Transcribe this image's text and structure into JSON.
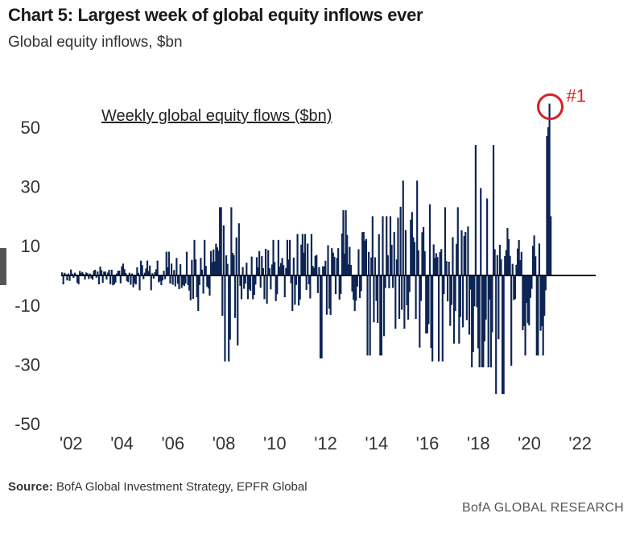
{
  "header": {
    "title": "Chart 5: Largest week of global equity inflows ever",
    "subtitle": "Global equity inflows, $bn"
  },
  "footer": {
    "source_label": "Source:",
    "source_text": "BofA Global Investment Strategy, EPFR Global",
    "brand": "BofA GLOBAL RESEARCH"
  },
  "colors": {
    "bars": "#0e2554",
    "zero_line": "#111111",
    "highlight": "#d62027",
    "axis_text": "#333333"
  },
  "chart_data": {
    "type": "bar",
    "title": "Weekly global equity flows ($bn)",
    "xlabel": "",
    "ylabel": "",
    "ylim": [
      -50,
      60
    ],
    "xlim": [
      2002,
      2023
    ],
    "yticks": [
      50,
      30,
      10,
      -10,
      -30,
      -50
    ],
    "xtick_labels": [
      "'02",
      "'04",
      "'06",
      "'08",
      "'10",
      "'12",
      "'14",
      "'16",
      "'18",
      "'20",
      "'22"
    ],
    "annotation": {
      "label": "#1",
      "x": 2021.15,
      "y": 58
    },
    "series": [
      {
        "values_by_year": [
          {
            "year": 2002,
            "max": 2,
            "min": -3
          },
          {
            "year": 2003,
            "max": 3,
            "min": -3
          },
          {
            "year": 2004,
            "max": 4,
            "min": -4
          },
          {
            "year": 2005,
            "max": 5,
            "min": -5
          },
          {
            "year": 2006,
            "max": 8,
            "min": -6
          },
          {
            "year": 2007,
            "max": 12,
            "min": -12
          },
          {
            "year": 2008,
            "max": 23,
            "min": -29
          },
          {
            "year": 2009,
            "max": 12,
            "min": -8
          },
          {
            "year": 2010,
            "max": 12,
            "min": -12
          },
          {
            "year": 2011,
            "max": 14,
            "min": -12
          },
          {
            "year": 2012,
            "max": 14,
            "min": -28
          },
          {
            "year": 2013,
            "max": 22,
            "min": -12
          },
          {
            "year": 2014,
            "max": 20,
            "min": -27
          },
          {
            "year": 2015,
            "max": 32,
            "min": -18
          },
          {
            "year": 2016,
            "max": 24,
            "min": -29
          },
          {
            "year": 2017,
            "max": 23,
            "min": -23
          },
          {
            "year": 2018,
            "max": 44,
            "min": -31
          },
          {
            "year": 2019,
            "max": 16,
            "min": -40
          },
          {
            "year": 2020,
            "max": 19,
            "min": -27
          },
          {
            "year": 2021,
            "max": 58,
            "min": -7
          }
        ]
      }
    ]
  }
}
